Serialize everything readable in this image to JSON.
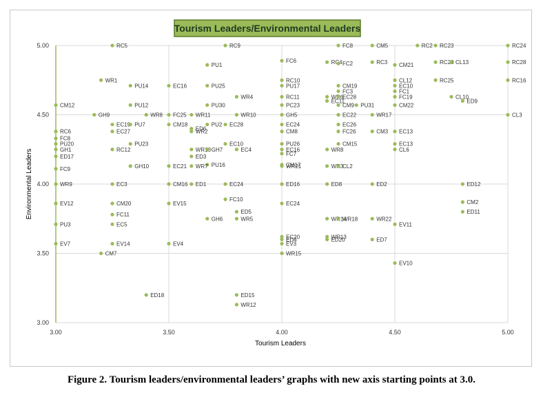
{
  "caption": "Figure 2. Tourism leaders/environmental leaders’ graphs with new axis starting points at 3.0.",
  "chart_data": {
    "type": "scatter",
    "title": "Tourism Leaders/Environmental Leaders",
    "xlabel": "Tourism Leaders",
    "ylabel": "Environmental Leaders",
    "xlim": [
      3.0,
      5.0
    ],
    "ylim": [
      3.0,
      5.0
    ],
    "xticks": [
      "3.00",
      "3.50",
      "4.00",
      "4.50",
      "5.00"
    ],
    "yticks": [
      "3.00",
      "3.50",
      "4.00",
      "4.50",
      "5.00"
    ],
    "grid": true,
    "colors": {
      "marker": "#9bbb59",
      "title_bg": "#9bbb59",
      "title_border": "#5a7a2a",
      "title_text": "#1f3a1f",
      "grid": "#d9d9d9",
      "axis": "#9bbb59"
    },
    "points": [
      {
        "label": "RC5",
        "x": 3.25,
        "y": 5.0
      },
      {
        "label": "RC9",
        "x": 3.75,
        "y": 5.0
      },
      {
        "label": "FC8",
        "x": 4.25,
        "y": 5.0
      },
      {
        "label": "CM5",
        "x": 4.4,
        "y": 5.0
      },
      {
        "label": "RC2",
        "x": 4.6,
        "y": 5.0
      },
      {
        "label": "RC23",
        "x": 4.68,
        "y": 5.0
      },
      {
        "label": "RC24",
        "x": 5.0,
        "y": 5.0
      },
      {
        "label": "FC6",
        "x": 4.0,
        "y": 4.89
      },
      {
        "label": "RC4",
        "x": 4.2,
        "y": 4.88
      },
      {
        "label": "FC2",
        "x": 4.25,
        "y": 4.87
      },
      {
        "label": "RC3",
        "x": 4.4,
        "y": 4.88
      },
      {
        "label": "RC20",
        "x": 4.68,
        "y": 4.88
      },
      {
        "label": "CL13",
        "x": 4.75,
        "y": 4.88
      },
      {
        "label": "RC28",
        "x": 5.0,
        "y": 4.88
      },
      {
        "label": "PU1",
        "x": 3.67,
        "y": 4.86
      },
      {
        "label": "CM21",
        "x": 4.5,
        "y": 4.86
      },
      {
        "label": "WR1",
        "x": 3.2,
        "y": 4.75
      },
      {
        "label": "RC10",
        "x": 4.0,
        "y": 4.75
      },
      {
        "label": "CL12",
        "x": 4.5,
        "y": 4.75
      },
      {
        "label": "RC25",
        "x": 4.68,
        "y": 4.75
      },
      {
        "label": "RC16",
        "x": 5.0,
        "y": 4.75
      },
      {
        "label": "PU14",
        "x": 3.33,
        "y": 4.71
      },
      {
        "label": "EC16",
        "x": 3.5,
        "y": 4.71
      },
      {
        "label": "PU25",
        "x": 3.67,
        "y": 4.71
      },
      {
        "label": "PU17",
        "x": 4.0,
        "y": 4.71
      },
      {
        "label": "CM19",
        "x": 4.25,
        "y": 4.71
      },
      {
        "label": "EC10",
        "x": 4.5,
        "y": 4.71
      },
      {
        "label": "FC3",
        "x": 4.25,
        "y": 4.67
      },
      {
        "label": "FC1",
        "x": 4.5,
        "y": 4.67
      },
      {
        "label": "WR4",
        "x": 3.8,
        "y": 4.63
      },
      {
        "label": "RC11",
        "x": 4.0,
        "y": 4.63
      },
      {
        "label": "WR6",
        "x": 4.2,
        "y": 4.63
      },
      {
        "label": "EC28",
        "x": 4.25,
        "y": 4.63
      },
      {
        "label": "FC19",
        "x": 4.5,
        "y": 4.63
      },
      {
        "label": "CL10",
        "x": 4.75,
        "y": 4.63
      },
      {
        "label": "EC11",
        "x": 4.2,
        "y": 4.6
      },
      {
        "label": "ED9",
        "x": 4.8,
        "y": 4.6
      },
      {
        "label": "CM12",
        "x": 3.0,
        "y": 4.57
      },
      {
        "label": "PU12",
        "x": 3.33,
        "y": 4.57
      },
      {
        "label": "PU30",
        "x": 3.67,
        "y": 4.57
      },
      {
        "label": "PC23",
        "x": 4.0,
        "y": 4.57
      },
      {
        "label": "CM9",
        "x": 4.25,
        "y": 4.57
      },
      {
        "label": "PU31",
        "x": 4.33,
        "y": 4.57
      },
      {
        "label": "CM22",
        "x": 4.5,
        "y": 4.57
      },
      {
        "label": "GH9",
        "x": 3.17,
        "y": 4.5
      },
      {
        "label": "WR8",
        "x": 3.4,
        "y": 4.5
      },
      {
        "label": "FC25",
        "x": 3.5,
        "y": 4.5
      },
      {
        "label": "WR11",
        "x": 3.6,
        "y": 4.5
      },
      {
        "label": "WR10",
        "x": 3.8,
        "y": 4.5
      },
      {
        "label": "GH5",
        "x": 4.0,
        "y": 4.5
      },
      {
        "label": "EC22",
        "x": 4.25,
        "y": 4.5
      },
      {
        "label": "WR17",
        "x": 4.4,
        "y": 4.5
      },
      {
        "label": "CL3",
        "x": 5.0,
        "y": 4.5
      },
      {
        "label": "EC19",
        "x": 3.25,
        "y": 4.43
      },
      {
        "label": "PU7",
        "x": 3.33,
        "y": 4.43
      },
      {
        "label": "CM18",
        "x": 3.5,
        "y": 4.43
      },
      {
        "label": "PU2",
        "x": 3.67,
        "y": 4.43
      },
      {
        "label": "EC28",
        "x": 3.75,
        "y": 4.43
      },
      {
        "label": "EC24",
        "x": 4.0,
        "y": 4.43
      },
      {
        "label": "EC26",
        "x": 4.25,
        "y": 4.43
      },
      {
        "label": "ED6",
        "x": 3.6,
        "y": 4.4
      },
      {
        "label": "WR2",
        "x": 3.6,
        "y": 4.38
      },
      {
        "label": "RC6",
        "x": 3.0,
        "y": 4.38
      },
      {
        "label": "EC27",
        "x": 3.25,
        "y": 4.38
      },
      {
        "label": "CM8",
        "x": 4.0,
        "y": 4.38
      },
      {
        "label": "FC26",
        "x": 4.25,
        "y": 4.38
      },
      {
        "label": "CM3",
        "x": 4.4,
        "y": 4.38
      },
      {
        "label": "EC13",
        "x": 4.5,
        "y": 4.38
      },
      {
        "label": "FC8",
        "x": 3.0,
        "y": 4.33
      },
      {
        "label": "PU20",
        "x": 3.0,
        "y": 4.29
      },
      {
        "label": "PU23",
        "x": 3.33,
        "y": 4.29
      },
      {
        "label": "EC10",
        "x": 3.75,
        "y": 4.29
      },
      {
        "label": "PU26",
        "x": 4.0,
        "y": 4.29
      },
      {
        "label": "CM15",
        "x": 4.25,
        "y": 4.29
      },
      {
        "label": "EC13",
        "x": 4.5,
        "y": 4.29
      },
      {
        "label": "GH1",
        "x": 3.0,
        "y": 4.25
      },
      {
        "label": "RC12",
        "x": 3.25,
        "y": 4.25
      },
      {
        "label": "WR18",
        "x": 3.6,
        "y": 4.25
      },
      {
        "label": "GH7",
        "x": 3.67,
        "y": 4.25
      },
      {
        "label": "EC4",
        "x": 3.8,
        "y": 4.25
      },
      {
        "label": "EC16",
        "x": 4.0,
        "y": 4.25
      },
      {
        "label": "WR8",
        "x": 4.2,
        "y": 4.25
      },
      {
        "label": "CL6",
        "x": 4.5,
        "y": 4.25
      },
      {
        "label": "FC7",
        "x": 4.0,
        "y": 4.22
      },
      {
        "label": "ED17",
        "x": 3.0,
        "y": 4.2
      },
      {
        "label": "ED3",
        "x": 3.6,
        "y": 4.2
      },
      {
        "label": "PU16",
        "x": 3.67,
        "y": 4.14
      },
      {
        "label": "CM17",
        "x": 4.0,
        "y": 4.14
      },
      {
        "label": "GH10",
        "x": 3.33,
        "y": 4.13
      },
      {
        "label": "EC21",
        "x": 3.5,
        "y": 4.13
      },
      {
        "label": "WR7",
        "x": 3.6,
        "y": 4.13
      },
      {
        "label": "WR21",
        "x": 4.0,
        "y": 4.13
      },
      {
        "label": "WR3",
        "x": 4.2,
        "y": 4.13
      },
      {
        "label": "CL2",
        "x": 4.25,
        "y": 4.13
      },
      {
        "label": "FC9",
        "x": 3.0,
        "y": 4.11
      },
      {
        "label": "WR9",
        "x": 3.0,
        "y": 4.0
      },
      {
        "label": "EC3",
        "x": 3.25,
        "y": 4.0
      },
      {
        "label": "CM16",
        "x": 3.5,
        "y": 4.0
      },
      {
        "label": "ED1",
        "x": 3.6,
        "y": 4.0
      },
      {
        "label": "EC24",
        "x": 3.75,
        "y": 4.0
      },
      {
        "label": "ED16",
        "x": 4.0,
        "y": 4.0
      },
      {
        "label": "ED8",
        "x": 4.2,
        "y": 4.0
      },
      {
        "label": "ED2",
        "x": 4.4,
        "y": 4.0
      },
      {
        "label": "ED12",
        "x": 4.8,
        "y": 4.0
      },
      {
        "label": "FC10",
        "x": 3.75,
        "y": 3.89
      },
      {
        "label": "CM2",
        "x": 4.8,
        "y": 3.87
      },
      {
        "label": "EV12",
        "x": 3.0,
        "y": 3.86
      },
      {
        "label": "CM20",
        "x": 3.25,
        "y": 3.86
      },
      {
        "label": "EV15",
        "x": 3.5,
        "y": 3.86
      },
      {
        "label": "EC24",
        "x": 4.0,
        "y": 3.86
      },
      {
        "label": "ED5",
        "x": 3.8,
        "y": 3.8
      },
      {
        "label": "ED11",
        "x": 4.8,
        "y": 3.8
      },
      {
        "label": "FC11",
        "x": 3.25,
        "y": 3.78
      },
      {
        "label": "GH6",
        "x": 3.67,
        "y": 3.75
      },
      {
        "label": "WR5",
        "x": 3.8,
        "y": 3.75
      },
      {
        "label": "WR14",
        "x": 4.2,
        "y": 3.75
      },
      {
        "label": "WR18",
        "x": 4.25,
        "y": 3.75
      },
      {
        "label": "WR22",
        "x": 4.4,
        "y": 3.75
      },
      {
        "label": "PU3",
        "x": 3.0,
        "y": 3.71
      },
      {
        "label": "EC5",
        "x": 3.25,
        "y": 3.71
      },
      {
        "label": "EV11",
        "x": 4.5,
        "y": 3.71
      },
      {
        "label": "EC20",
        "x": 4.0,
        "y": 3.62
      },
      {
        "label": "WR13",
        "x": 4.2,
        "y": 3.62
      },
      {
        "label": "ED4",
        "x": 4.0,
        "y": 3.6
      },
      {
        "label": "ED20",
        "x": 4.2,
        "y": 3.6
      },
      {
        "label": "ED7",
        "x": 4.4,
        "y": 3.6
      },
      {
        "label": "EV7",
        "x": 3.0,
        "y": 3.57
      },
      {
        "label": "EV14",
        "x": 3.25,
        "y": 3.57
      },
      {
        "label": "EV4",
        "x": 3.5,
        "y": 3.57
      },
      {
        "label": "EV3",
        "x": 4.0,
        "y": 3.57
      },
      {
        "label": "CM7",
        "x": 3.2,
        "y": 3.5
      },
      {
        "label": "WR15",
        "x": 4.0,
        "y": 3.5
      },
      {
        "label": "EV10",
        "x": 4.5,
        "y": 3.43
      },
      {
        "label": "ED18",
        "x": 3.4,
        "y": 3.2
      },
      {
        "label": "ED15",
        "x": 3.8,
        "y": 3.2
      },
      {
        "label": "WR12",
        "x": 3.8,
        "y": 3.13
      }
    ]
  }
}
